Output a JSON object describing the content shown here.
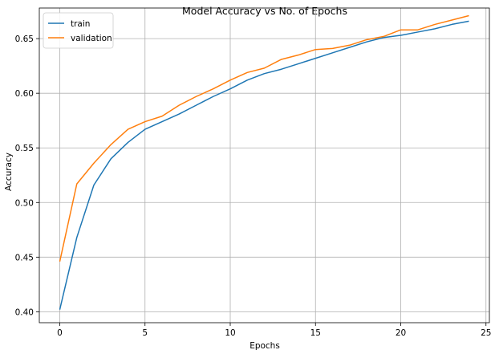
{
  "chart_data": {
    "type": "line",
    "title": "Model Accuracy vs No. of Epochs",
    "xlabel": "Epochs",
    "ylabel": "Accuracy",
    "xlim": [
      -1.2,
      25.2
    ],
    "ylim": [
      0.39,
      0.678
    ],
    "xticks": [
      0,
      5,
      10,
      15,
      20,
      25
    ],
    "yticks": [
      0.4,
      0.45,
      0.5,
      0.55,
      0.6,
      0.65
    ],
    "xtick_labels": [
      "0",
      "5",
      "10",
      "15",
      "20",
      "25"
    ],
    "ytick_labels": [
      "0.40",
      "0.45",
      "0.50",
      "0.55",
      "0.60",
      "0.65"
    ],
    "grid": true,
    "legend_position": "top-left",
    "x": [
      0,
      1,
      2,
      3,
      4,
      5,
      6,
      7,
      8,
      9,
      10,
      11,
      12,
      13,
      14,
      15,
      16,
      17,
      18,
      19,
      20,
      21,
      22,
      23,
      24
    ],
    "series": [
      {
        "name": "train",
        "color": "#1f77b4",
        "values": [
          0.402,
          0.468,
          0.516,
          0.54,
          0.555,
          0.567,
          0.574,
          0.581,
          0.589,
          0.597,
          0.604,
          0.612,
          0.618,
          0.622,
          0.627,
          0.632,
          0.637,
          0.642,
          0.647,
          0.651,
          0.653,
          0.656,
          0.659,
          0.663,
          0.666
        ]
      },
      {
        "name": "validation",
        "color": "#ff7f0e",
        "values": [
          0.446,
          0.517,
          0.536,
          0.553,
          0.567,
          0.574,
          0.579,
          0.589,
          0.597,
          0.604,
          0.612,
          0.619,
          0.623,
          0.631,
          0.635,
          0.64,
          0.641,
          0.644,
          0.649,
          0.652,
          0.658,
          0.658,
          0.663,
          0.667,
          0.671
        ]
      }
    ]
  }
}
